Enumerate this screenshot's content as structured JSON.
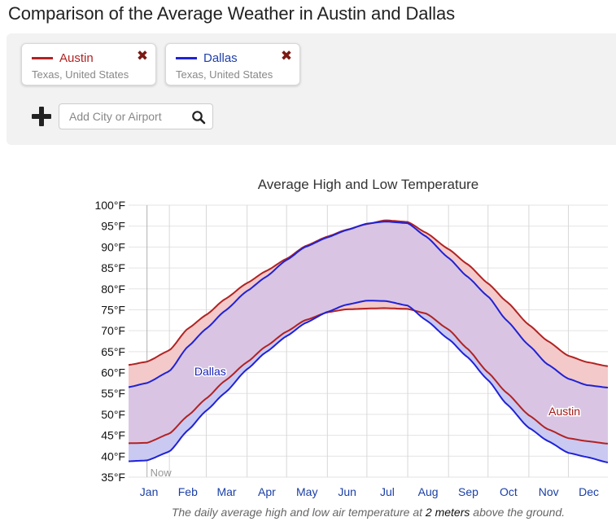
{
  "page": {
    "title": "Comparison of the Average Weather in Austin and Dallas"
  },
  "cities": [
    {
      "name": "Austin",
      "region": "Texas, United States",
      "color": "#b22222",
      "remove_icon": "close-x-icon"
    },
    {
      "name": "Dallas",
      "region": "Texas, United States",
      "color": "#1f22d6",
      "remove_icon": "close-x-icon"
    }
  ],
  "add_city": {
    "icon": "plus-icon",
    "placeholder": "Add City or Airport",
    "search_icon": "search-icon"
  },
  "caption": {
    "prefix": "The daily average high and low air temperature at ",
    "emphasis": "2 meters",
    "suffix": " above the ground."
  },
  "chart_data": {
    "type": "area",
    "title": "Average High and Low Temperature",
    "xlabel": "",
    "ylabel": "",
    "x_unit": "day of year",
    "ylim": [
      35,
      100
    ],
    "y_ticks": [
      35,
      40,
      45,
      50,
      55,
      60,
      65,
      70,
      75,
      80,
      85,
      90,
      95,
      100
    ],
    "y_tick_suffix": "°F",
    "month_labels": [
      "Jan",
      "Feb",
      "Mar",
      "Apr",
      "May",
      "Jun",
      "Jul",
      "Aug",
      "Sep",
      "Oct",
      "Nov",
      "Dec"
    ],
    "now_marker": {
      "label": "Now",
      "day": 15
    },
    "grid": true,
    "colors": {
      "austin_band": "#f3c9c9",
      "dallas_band": "#c9c9f2",
      "overlap_band": "#d9c5e3"
    },
    "series": [
      {
        "name": "Austin",
        "label_pos": "bottom-right",
        "color": "#b22222",
        "days": [
          1,
          15,
          32,
          46,
          60,
          74,
          91,
          105,
          121,
          135,
          152,
          166,
          182,
          196,
          213,
          227,
          244,
          258,
          274,
          288,
          305,
          319,
          335,
          349,
          365
        ],
        "high": [
          61.8,
          62.6,
          65.3,
          70.5,
          73.8,
          77.5,
          81.4,
          84.2,
          87.2,
          90.2,
          92.5,
          94.1,
          95.5,
          96.4,
          96.0,
          93.4,
          89.5,
          86.0,
          81.3,
          77.0,
          71.4,
          67.6,
          64.0,
          62.5,
          61.5
        ],
        "low": [
          43.1,
          43.2,
          45.4,
          49.7,
          53.8,
          58.0,
          62.5,
          66.2,
          69.8,
          72.5,
          74.4,
          75.1,
          75.3,
          75.4,
          75.2,
          74.1,
          70.3,
          65.8,
          60.0,
          55.2,
          49.8,
          46.5,
          44.3,
          43.6,
          43.0
        ]
      },
      {
        "name": "Dallas",
        "label_pos": "top-left",
        "color": "#1f22d6",
        "days": [
          1,
          15,
          32,
          46,
          60,
          74,
          91,
          105,
          121,
          135,
          152,
          166,
          182,
          196,
          213,
          227,
          244,
          258,
          274,
          288,
          305,
          319,
          335,
          349,
          365
        ],
        "high": [
          56.5,
          57.5,
          60.3,
          66.2,
          70.5,
          74.7,
          79.5,
          82.8,
          86.9,
          90.0,
          92.3,
          94.0,
          95.6,
          96.1,
          95.7,
          92.5,
          87.4,
          83.0,
          78.2,
          72.5,
          66.5,
          62.0,
          58.5,
          57.0,
          56.4
        ],
        "low": [
          38.8,
          39.0,
          41.1,
          46.2,
          50.9,
          55.1,
          60.8,
          64.8,
          68.7,
          71.8,
          74.5,
          76.2,
          77.2,
          77.1,
          76.0,
          72.5,
          68.0,
          63.8,
          58.2,
          52.5,
          46.8,
          43.7,
          40.8,
          39.8,
          38.5
        ]
      }
    ]
  }
}
